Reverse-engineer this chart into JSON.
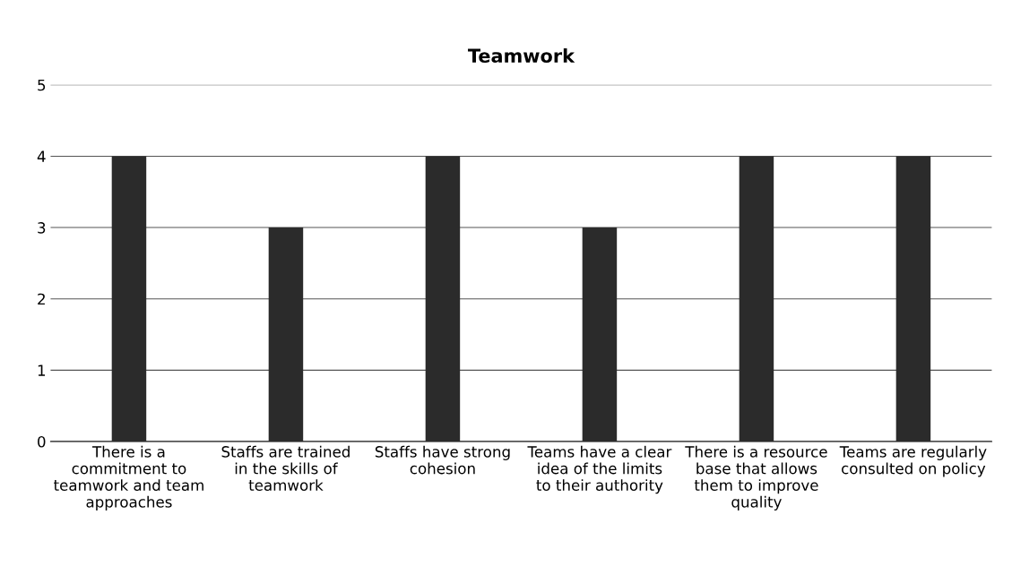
{
  "chart_data": {
    "type": "bar",
    "title": "Teamwork",
    "categories": [
      "There is a commitment to teamwork and team approaches",
      "Staffs are trained in the skills of teamwork",
      "Staffs have strong cohesion",
      "Teams have a clear idea of the limits to their authority",
      "There is a resource base that allows them to improve quality",
      "Teams are regularly consulted on policy"
    ],
    "values": [
      4,
      3,
      4,
      3,
      4,
      4
    ],
    "color": "#2b2b2b",
    "ylim": [
      0,
      5
    ],
    "yticks": [
      0,
      1,
      2,
      3,
      4,
      5
    ],
    "grid": "y",
    "legend": false
  }
}
